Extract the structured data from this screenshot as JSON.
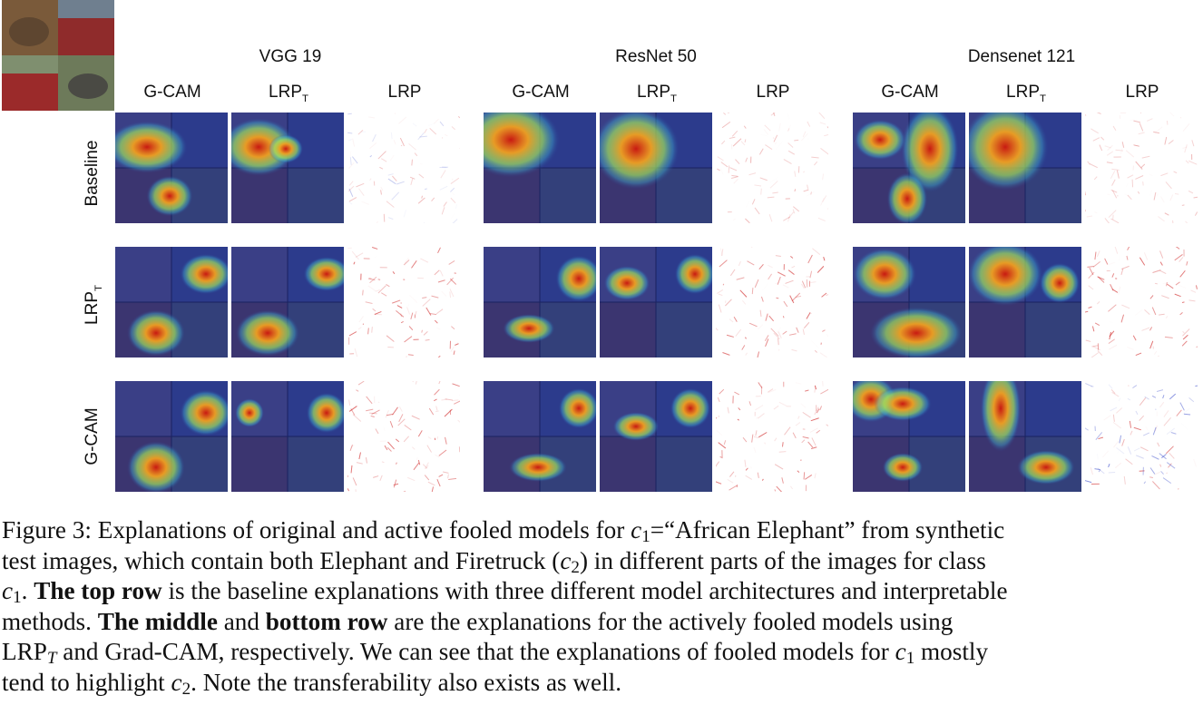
{
  "figure": {
    "models": [
      "VGG 19",
      "ResNet 50",
      "Densenet 121"
    ],
    "methods": [
      "G-CAM",
      "LRP",
      "LRP"
    ],
    "method_subscripts": [
      "",
      "T",
      ""
    ],
    "rows": [
      {
        "label": "Baseline",
        "subscript": ""
      },
      {
        "label": "LRP",
        "subscript": "T"
      },
      {
        "label": "G-CAM",
        "subscript": ""
      }
    ]
  },
  "caption": {
    "l1_a": "Figure 3: Explanations of original and active fooled models for ",
    "c1": "c",
    "c1_sub": "1",
    "l1_b": "=“African Elephant” from synthetic",
    "l2_a": "test images, which contain both Elephant and Firetruck (",
    "c2": "c",
    "c2_sub": "2",
    "l2_b": ") in different parts of the images for class",
    "l3_c": "c",
    "l3_c_sub": "1",
    "l3_a": ". ",
    "l3_bold": "The top row",
    "l3_b": " is the baseline explanations with three different model architectures and interpretable",
    "l4_a": "methods. ",
    "l4_bold1": "The middle",
    "l4_b": " and ",
    "l4_bold2": "bottom row",
    "l4_c": " are the explanations for the actively fooled models using",
    "l5_a": "LRP",
    "l5_sub": "T",
    "l5_b": " and Grad-CAM, respectively. We can see that the explanations of fooled models for ",
    "l5_c": "c",
    "l5_c_sub": "1",
    "l5_d": " mostly",
    "l6_a": "tend to highlight ",
    "l6_c": "c",
    "l6_c_sub": "2",
    "l6_b": ". Note the transferability also exists as well."
  }
}
